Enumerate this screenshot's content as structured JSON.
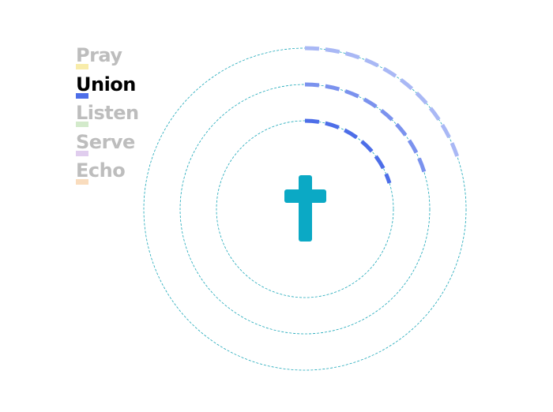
{
  "menu": {
    "items": [
      "Pray",
      "Union",
      "Listen",
      "Serve",
      "Echo"
    ],
    "active": "Union"
  }
}
